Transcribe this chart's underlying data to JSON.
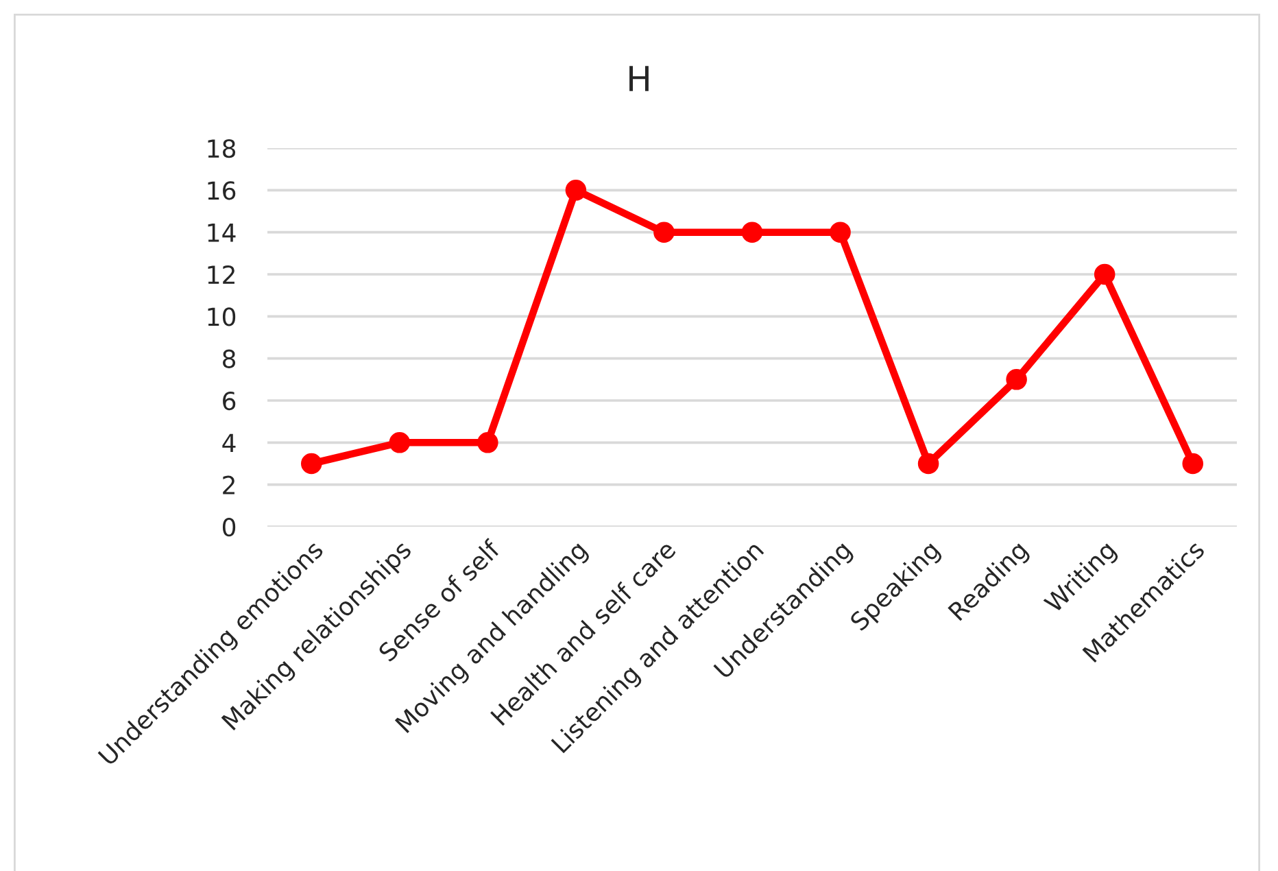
{
  "chart_data": {
    "type": "line",
    "title": "H",
    "categories": [
      "Understanding emotions",
      "Making relationships",
      "Sense of self",
      "Moving and handling",
      "Health and self care",
      "Listening and attention",
      "Understanding",
      "Speaking",
      "Reading",
      "Writing",
      "Mathematics"
    ],
    "series": [
      {
        "color": "#ff0000",
        "values": [
          3,
          4,
          4,
          16,
          14,
          14,
          14,
          3,
          7,
          12,
          3
        ]
      }
    ],
    "ylim": [
      0,
      18
    ],
    "yticks": [
      0,
      2,
      4,
      6,
      8,
      10,
      12,
      14,
      16,
      18
    ],
    "grid": "y",
    "marker": "circle",
    "line_style": "solid"
  }
}
